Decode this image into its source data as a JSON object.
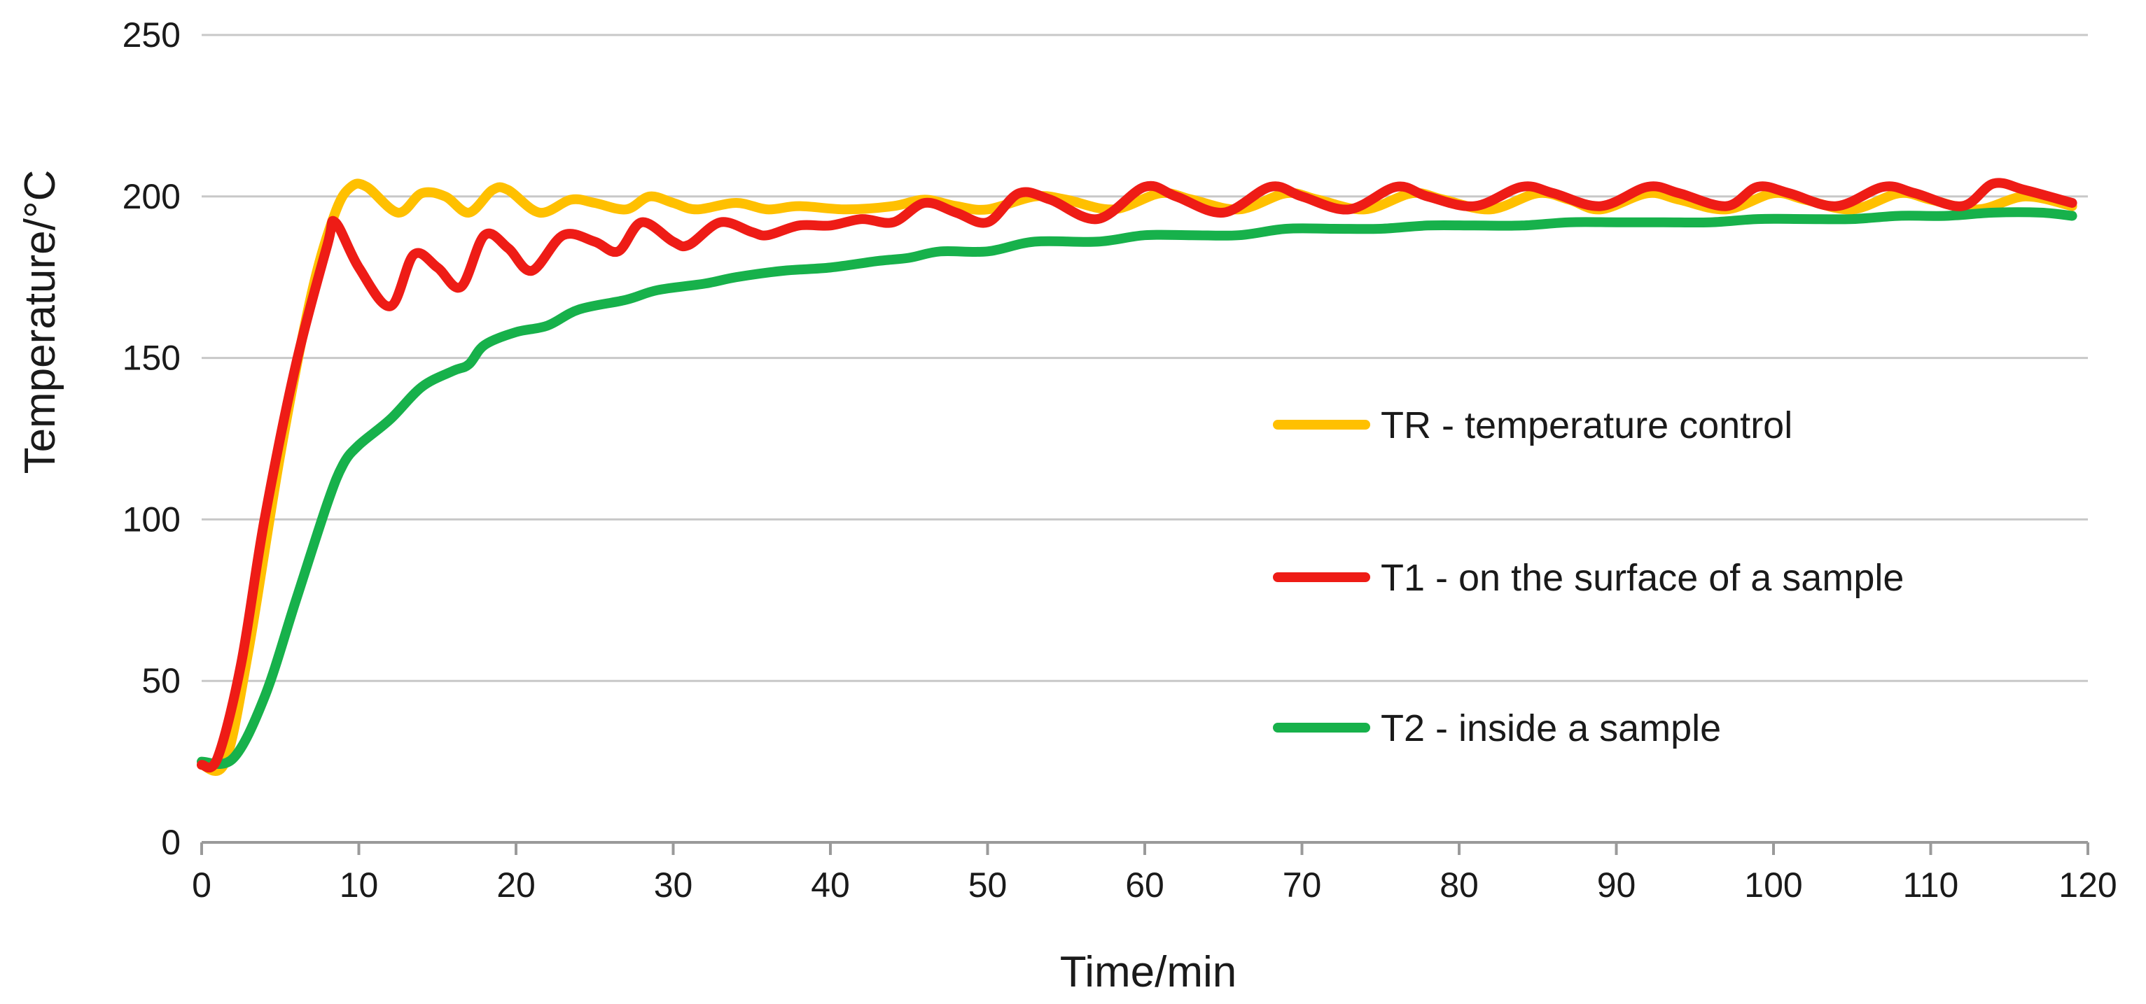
{
  "chart_data": {
    "type": "line",
    "title": "",
    "xlabel": "Time/min",
    "ylabel": "Temperature/°C",
    "xlim": [
      0,
      120
    ],
    "ylim": [
      0,
      250
    ],
    "xticks": [
      0,
      10,
      20,
      30,
      40,
      50,
      60,
      70,
      80,
      90,
      100,
      110,
      120
    ],
    "yticks": [
      0,
      50,
      100,
      150,
      200,
      250
    ],
    "grid": "horizontal",
    "legend_position": "center-right",
    "series": [
      {
        "name": "TR - temperature control",
        "color": "#FFC000",
        "points": [
          [
            0,
            24
          ],
          [
            1.5,
            25
          ],
          [
            3,
            60
          ],
          [
            5,
            120
          ],
          [
            7,
            170
          ],
          [
            8.5,
            195
          ],
          [
            9.5,
            203
          ],
          [
            10.5,
            203
          ],
          [
            12.5,
            195
          ],
          [
            14,
            201
          ],
          [
            15.5,
            200
          ],
          [
            17,
            195
          ],
          [
            18.5,
            202
          ],
          [
            19.5,
            202
          ],
          [
            21.5,
            195
          ],
          [
            23.5,
            199
          ],
          [
            25,
            198
          ],
          [
            27,
            196
          ],
          [
            28.5,
            200
          ],
          [
            30,
            198
          ],
          [
            31.5,
            196
          ],
          [
            34,
            198
          ],
          [
            36,
            196
          ],
          [
            38,
            197
          ],
          [
            41,
            196
          ],
          [
            44,
            197
          ],
          [
            46,
            199
          ],
          [
            48,
            197
          ],
          [
            50,
            196
          ],
          [
            53,
            200
          ],
          [
            55,
            199
          ],
          [
            58,
            196
          ],
          [
            61,
            201
          ],
          [
            63,
            199
          ],
          [
            66,
            196
          ],
          [
            69,
            201
          ],
          [
            71,
            199
          ],
          [
            74,
            196
          ],
          [
            77,
            201
          ],
          [
            79,
            199
          ],
          [
            82,
            196
          ],
          [
            85,
            201
          ],
          [
            87,
            199
          ],
          [
            89,
            196
          ],
          [
            92,
            201
          ],
          [
            94,
            199
          ],
          [
            97,
            196
          ],
          [
            100,
            201
          ],
          [
            102,
            199
          ],
          [
            105,
            196
          ],
          [
            108,
            201
          ],
          [
            110,
            199
          ],
          [
            113,
            196
          ],
          [
            116,
            200
          ],
          [
            119,
            197
          ]
        ]
      },
      {
        "name": "T1 - on the surface of a sample",
        "color": "#EE1C16",
        "points": [
          [
            0,
            24
          ],
          [
            1,
            26
          ],
          [
            2.5,
            55
          ],
          [
            4,
            100
          ],
          [
            6,
            148
          ],
          [
            8,
            185
          ],
          [
            8.5,
            192
          ],
          [
            10,
            178
          ],
          [
            12,
            166
          ],
          [
            13.5,
            182
          ],
          [
            15,
            178
          ],
          [
            16.5,
            172
          ],
          [
            18,
            188
          ],
          [
            19.5,
            184
          ],
          [
            21,
            177
          ],
          [
            23,
            188
          ],
          [
            25,
            186
          ],
          [
            26.5,
            183
          ],
          [
            28,
            192
          ],
          [
            30,
            186
          ],
          [
            31,
            185
          ],
          [
            33,
            192
          ],
          [
            35,
            189
          ],
          [
            36,
            188
          ],
          [
            38,
            191
          ],
          [
            40,
            191
          ],
          [
            42,
            193
          ],
          [
            44,
            192
          ],
          [
            46,
            198
          ],
          [
            48,
            195
          ],
          [
            50,
            192
          ],
          [
            52,
            201
          ],
          [
            54,
            199
          ],
          [
            57,
            193
          ],
          [
            60,
            203
          ],
          [
            62,
            200
          ],
          [
            65,
            195
          ],
          [
            68,
            203
          ],
          [
            70,
            200
          ],
          [
            73,
            196
          ],
          [
            76,
            203
          ],
          [
            78,
            200
          ],
          [
            81,
            197
          ],
          [
            84,
            203
          ],
          [
            86,
            201
          ],
          [
            89,
            197
          ],
          [
            92,
            203
          ],
          [
            94,
            201
          ],
          [
            97,
            197
          ],
          [
            99,
            203
          ],
          [
            101,
            201
          ],
          [
            104,
            197
          ],
          [
            107,
            203
          ],
          [
            109,
            201
          ],
          [
            112,
            197
          ],
          [
            114,
            204
          ],
          [
            116,
            202
          ],
          [
            119,
            198
          ]
        ]
      },
      {
        "name": "T2 - inside a sample",
        "color": "#17B14B",
        "points": [
          [
            0,
            25
          ],
          [
            2,
            26
          ],
          [
            4,
            45
          ],
          [
            6,
            75
          ],
          [
            8,
            105
          ],
          [
            9,
            117
          ],
          [
            10,
            123
          ],
          [
            12,
            131
          ],
          [
            14,
            141
          ],
          [
            16,
            146
          ],
          [
            17,
            148
          ],
          [
            18,
            154
          ],
          [
            20,
            158
          ],
          [
            22,
            160
          ],
          [
            24,
            165
          ],
          [
            27,
            168
          ],
          [
            29,
            171
          ],
          [
            32,
            173
          ],
          [
            34,
            175
          ],
          [
            37,
            177
          ],
          [
            40,
            178
          ],
          [
            43,
            180
          ],
          [
            45,
            181
          ],
          [
            47,
            183
          ],
          [
            50,
            183
          ],
          [
            53,
            186
          ],
          [
            57,
            186
          ],
          [
            60,
            188
          ],
          [
            63,
            188
          ],
          [
            66,
            188
          ],
          [
            69,
            190
          ],
          [
            72,
            190
          ],
          [
            75,
            190
          ],
          [
            78,
            191
          ],
          [
            81,
            191
          ],
          [
            84,
            191
          ],
          [
            87,
            192
          ],
          [
            90,
            192
          ],
          [
            93,
            192
          ],
          [
            96,
            192
          ],
          [
            99,
            193
          ],
          [
            102,
            193
          ],
          [
            105,
            193
          ],
          [
            108,
            194
          ],
          [
            111,
            194
          ],
          [
            114,
            195
          ],
          [
            117,
            195
          ],
          [
            119,
            194
          ]
        ]
      }
    ]
  }
}
